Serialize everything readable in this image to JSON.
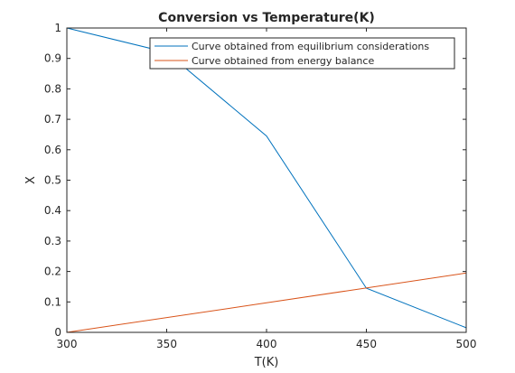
{
  "chart_data": {
    "type": "line",
    "title": "Conversion vs Temperature(K)",
    "xlabel": "T(K)",
    "ylabel": "X",
    "xlim": [
      300,
      500
    ],
    "ylim": [
      0,
      1
    ],
    "xticks": [
      "300",
      "350",
      "400",
      "450",
      "500"
    ],
    "yticks": [
      "0",
      "0.1",
      "0.2",
      "0.3",
      "0.4",
      "0.5",
      "0.6",
      "0.7",
      "0.8",
      "0.9",
      "1"
    ],
    "grid": false,
    "legend_position": "top-right",
    "series": [
      {
        "name": "Curve obtained from equilibrium considerations",
        "color": "#0072bd",
        "x": [
          300,
          350,
          400,
          450,
          500
        ],
        "y": [
          1.0,
          0.92,
          0.645,
          0.145,
          0.015
        ]
      },
      {
        "name": "Curve obtained from energy balance",
        "color": "#d95319",
        "x": [
          300,
          400,
          500
        ],
        "y": [
          0.0,
          0.097,
          0.195
        ]
      }
    ]
  }
}
